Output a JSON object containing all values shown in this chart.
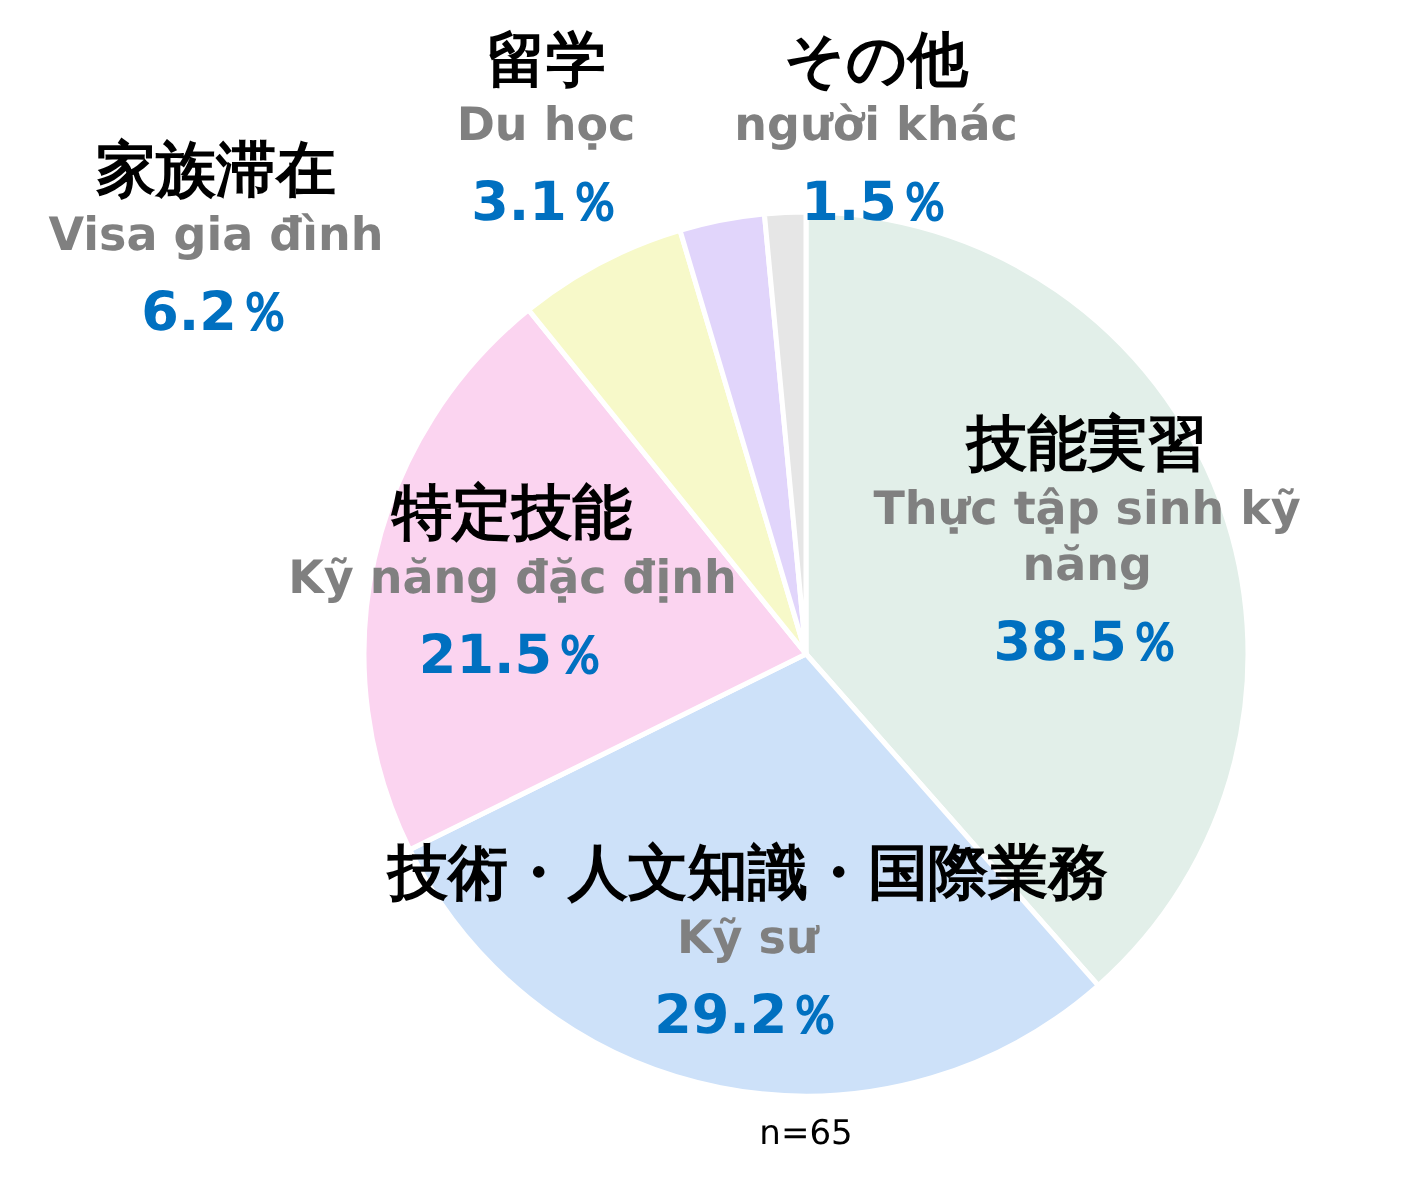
{
  "chart_data": {
    "type": "pie",
    "categories": [
      "技能実習\nThực tập sinh kỹ\nnăng",
      "技術・人文知識・国際業務\nKỹ sư",
      "特定技能\nKỹ năng đặc định",
      "家族滞在\nVisa gia đình",
      "留学\nDu học",
      "その他\nngười khác"
    ],
    "values": [
      38.5,
      29.2,
      21.5,
      6.2,
      3.1,
      1.5
    ],
    "value_labels": [
      "38.5％",
      "29.2％",
      "21.5％",
      "6.2％",
      "3.1％",
      "1.5％"
    ],
    "colors": [
      "#e2efe9",
      "#cde1f9",
      "#fbd4f0",
      "#f7f9c9",
      "#e1d5fb",
      "#e6e6e6"
    ],
    "annotations": [
      "n=65"
    ]
  }
}
